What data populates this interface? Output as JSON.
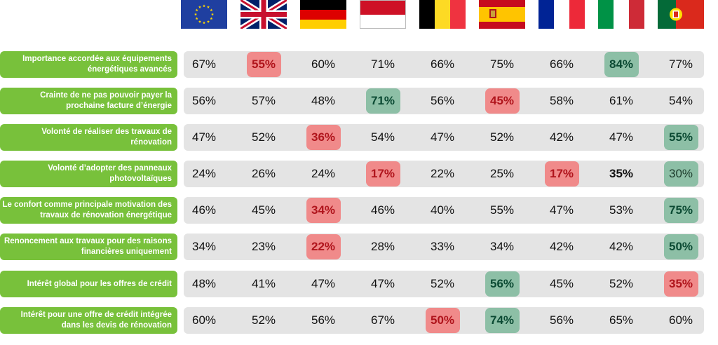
{
  "chart_data": {
    "type": "table",
    "columns": [
      {
        "flag": "european-union",
        "icon": "eu-flag-icon"
      },
      {
        "flag": "united-kingdom",
        "icon": "uk-flag-icon"
      },
      {
        "flag": "germany",
        "icon": "germany-flag-icon"
      },
      {
        "flag": "monaco",
        "icon": "monaco-flag-icon"
      },
      {
        "flag": "belgium",
        "icon": "belgium-flag-icon"
      },
      {
        "flag": "spain",
        "icon": "spain-flag-icon"
      },
      {
        "flag": "france",
        "icon": "france-flag-icon"
      },
      {
        "flag": "italy",
        "icon": "italy-flag-icon"
      },
      {
        "flag": "portugal",
        "icon": "portugal-flag-icon"
      }
    ],
    "rows": [
      {
        "label": "Importance accordée aux équipements énergétiques avancés",
        "values": [
          "67%",
          "55%",
          "60%",
          "71%",
          "66%",
          "75%",
          "66%",
          "84%",
          "77%"
        ],
        "highlights": [
          null,
          "low",
          null,
          null,
          null,
          null,
          null,
          "high",
          null
        ]
      },
      {
        "label": "Crainte de ne pas pouvoir payer la prochaine facture d’énergie",
        "values": [
          "56%",
          "57%",
          "48%",
          "71%",
          "56%",
          "45%",
          "58%",
          "61%",
          "54%"
        ],
        "highlights": [
          null,
          null,
          null,
          "high",
          null,
          "low",
          null,
          null,
          null
        ]
      },
      {
        "label": "Volonté de réaliser des travaux de rénovation",
        "values": [
          "47%",
          "52%",
          "36%",
          "54%",
          "47%",
          "52%",
          "42%",
          "47%",
          "55%"
        ],
        "highlights": [
          null,
          null,
          "low",
          null,
          null,
          null,
          null,
          null,
          "high"
        ]
      },
      {
        "label": "Volonté d’adopter des panneaux photovoltaïques",
        "values": [
          "24%",
          "26%",
          "24%",
          "17%",
          "22%",
          "25%",
          "17%",
          "35%",
          "30%"
        ],
        "highlights": [
          null,
          null,
          null,
          "low",
          null,
          null,
          "low",
          "bold",
          "high-plain"
        ]
      },
      {
        "label": "Le confort comme principale motivation des travaux de rénovation énergétique",
        "values": [
          "46%",
          "45%",
          "34%",
          "46%",
          "40%",
          "55%",
          "47%",
          "53%",
          "75%"
        ],
        "highlights": [
          null,
          null,
          "low",
          null,
          null,
          null,
          null,
          null,
          "high"
        ]
      },
      {
        "label": "Renoncement aux travaux pour des raisons financières uniquement",
        "values": [
          "34%",
          "23%",
          "22%",
          "28%",
          "33%",
          "34%",
          "42%",
          "42%",
          "50%"
        ],
        "highlights": [
          null,
          null,
          "low",
          null,
          null,
          null,
          null,
          null,
          "high"
        ]
      },
      {
        "label": "Intérêt global pour les offres de crédit",
        "values": [
          "48%",
          "41%",
          "47%",
          "47%",
          "52%",
          "56%",
          "45%",
          "52%",
          "35%"
        ],
        "highlights": [
          null,
          null,
          null,
          null,
          null,
          "high",
          null,
          null,
          "low"
        ]
      },
      {
        "label": "Intérêt pour une offre de crédit intégrée dans les devis de rénovation",
        "values": [
          "60%",
          "52%",
          "56%",
          "67%",
          "50%",
          "74%",
          "56%",
          "65%",
          "60%"
        ],
        "highlights": [
          null,
          null,
          null,
          null,
          "low",
          "high",
          null,
          null,
          null
        ]
      }
    ]
  },
  "colors": {
    "label_bg": "#78c13b",
    "band_bg": "#e4e4e4",
    "low_bg": "#f08a8a",
    "low_text": "#b0141c",
    "high_bg": "#8dbfa6",
    "high_text": "#0b4a33"
  }
}
